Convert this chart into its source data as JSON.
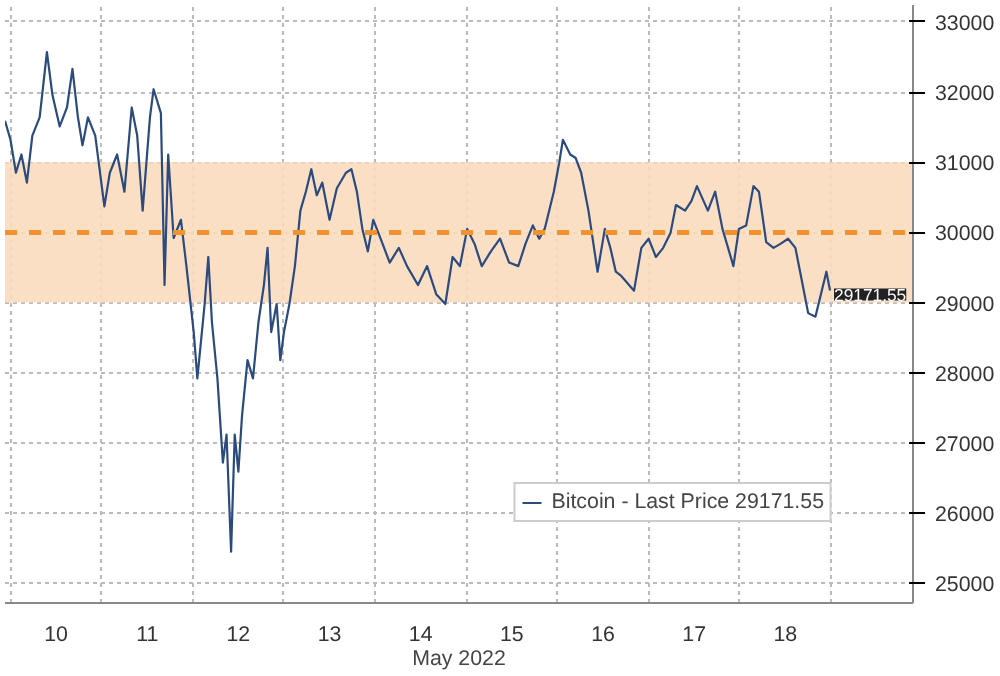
{
  "chart_data": {
    "type": "line",
    "xlabel": "May 2022",
    "x": [
      9.94,
      10.0,
      10.06,
      10.12,
      10.18,
      10.24,
      10.32,
      10.4,
      10.46,
      10.54,
      10.62,
      10.68,
      10.74,
      10.79,
      10.85,
      10.93,
      11.03,
      11.09,
      11.17,
      11.25,
      11.33,
      11.39,
      11.45,
      11.53,
      11.57,
      11.65,
      11.69,
      11.73,
      11.79,
      11.87,
      11.93,
      12.01,
      12.05,
      12.09,
      12.13,
      12.17,
      12.21,
      12.27,
      12.33,
      12.37,
      12.41,
      12.42,
      12.46,
      12.5,
      12.54,
      12.6,
      12.66,
      12.72,
      12.78,
      12.82,
      12.86,
      12.92,
      12.96,
      13.0,
      13.06,
      13.12,
      13.18,
      13.24,
      13.3,
      13.36,
      13.42,
      13.5,
      13.58,
      13.68,
      13.74,
      13.8,
      13.86,
      13.92,
      13.98,
      14.06,
      14.16,
      14.26,
      14.35,
      14.47,
      14.57,
      14.67,
      14.77,
      14.85,
      14.93,
      15.01,
      15.09,
      15.17,
      15.27,
      15.37,
      15.47,
      15.57,
      15.65,
      15.73,
      15.8,
      15.86,
      15.96,
      16.02,
      16.06,
      16.14,
      16.2,
      16.26,
      16.34,
      16.44,
      16.52,
      16.58,
      16.64,
      16.7,
      16.84,
      16.92,
      17.0,
      17.08,
      17.16,
      17.24,
      17.3,
      17.4,
      17.47,
      17.53,
      17.65,
      17.73,
      17.81,
      17.93,
      17.99,
      18.07,
      18.15,
      18.21,
      18.29,
      18.37,
      18.45,
      18.53,
      18.61,
      18.69,
      18.75,
      18.83,
      18.89,
      18.95,
      18.99
    ],
    "series": [
      {
        "name": "Bitcoin - Last Price 29171.55",
        "color": "#2b4a7e",
        "values": [
          31590,
          31320,
          30850,
          31110,
          30710,
          31380,
          31640,
          32570,
          31960,
          31510,
          31780,
          32330,
          31640,
          31240,
          31640,
          31380,
          30370,
          30850,
          31110,
          30580,
          31780,
          31380,
          30310,
          31640,
          32040,
          31700,
          29250,
          31110,
          29920,
          30180,
          29520,
          28580,
          27920,
          28450,
          28980,
          29650,
          28720,
          27920,
          26720,
          27120,
          25790,
          25450,
          27120,
          26590,
          27390,
          28180,
          27920,
          28720,
          29250,
          29780,
          28580,
          28980,
          28180,
          28580,
          28980,
          29520,
          30310,
          30580,
          30900,
          30530,
          30710,
          30180,
          30630,
          30850,
          30900,
          30580,
          30050,
          29730,
          30180,
          29910,
          29570,
          29780,
          29520,
          29250,
          29520,
          29120,
          28980,
          29650,
          29520,
          30050,
          29840,
          29520,
          29730,
          29910,
          29570,
          29520,
          29840,
          30100,
          29910,
          30050,
          30580,
          31000,
          31320,
          31110,
          31060,
          30850,
          30310,
          29440,
          30050,
          29780,
          29440,
          29380,
          29170,
          29780,
          29910,
          29650,
          29780,
          29990,
          30390,
          30310,
          30450,
          30660,
          30310,
          30580,
          30050,
          29520,
          30050,
          30100,
          30660,
          30580,
          29860,
          29780,
          29840,
          29910,
          29780,
          29250,
          28850,
          28800,
          29120,
          29440,
          29171.55
        ]
      }
    ],
    "xlim": [
      9.94,
      19.9
    ],
    "xticks": [
      {
        "value": 10,
        "label": null
      },
      {
        "value": 10.5,
        "label": "10"
      },
      {
        "value": 11,
        "label": null
      },
      {
        "value": 11.5,
        "label": "11"
      },
      {
        "value": 12,
        "label": null
      },
      {
        "value": 12.5,
        "label": "12"
      },
      {
        "value": 13,
        "label": null
      },
      {
        "value": 13.5,
        "label": "13"
      },
      {
        "value": 14,
        "label": null
      },
      {
        "value": 14.5,
        "label": "14"
      },
      {
        "value": 15,
        "label": null
      },
      {
        "value": 15.5,
        "label": "15"
      },
      {
        "value": 16,
        "label": null
      },
      {
        "value": 16.5,
        "label": "16"
      },
      {
        "value": 17,
        "label": null
      },
      {
        "value": 17.5,
        "label": "17"
      },
      {
        "value": 18,
        "label": null
      },
      {
        "value": 18.5,
        "label": "18"
      },
      {
        "value": 19,
        "label": null
      }
    ],
    "ylim": [
      24720,
      33240
    ],
    "yticks": [
      25000,
      26000,
      27000,
      28000,
      29000,
      30000,
      31000,
      32000,
      33000
    ],
    "ref_lines": [
      {
        "axis": "y",
        "value": 30000,
        "color": "#f0922e",
        "line_style": "dashed"
      }
    ],
    "bands": [
      {
        "axis": "y",
        "from": 29000,
        "to": 31000,
        "color": "#fbdcbf"
      }
    ],
    "annotations": [
      {
        "text": "29171.55",
        "x": 18.99,
        "y": 29171.55
      }
    ],
    "grid": true,
    "legend": "bottom right",
    "marker": "none",
    "line_style": "solid"
  }
}
